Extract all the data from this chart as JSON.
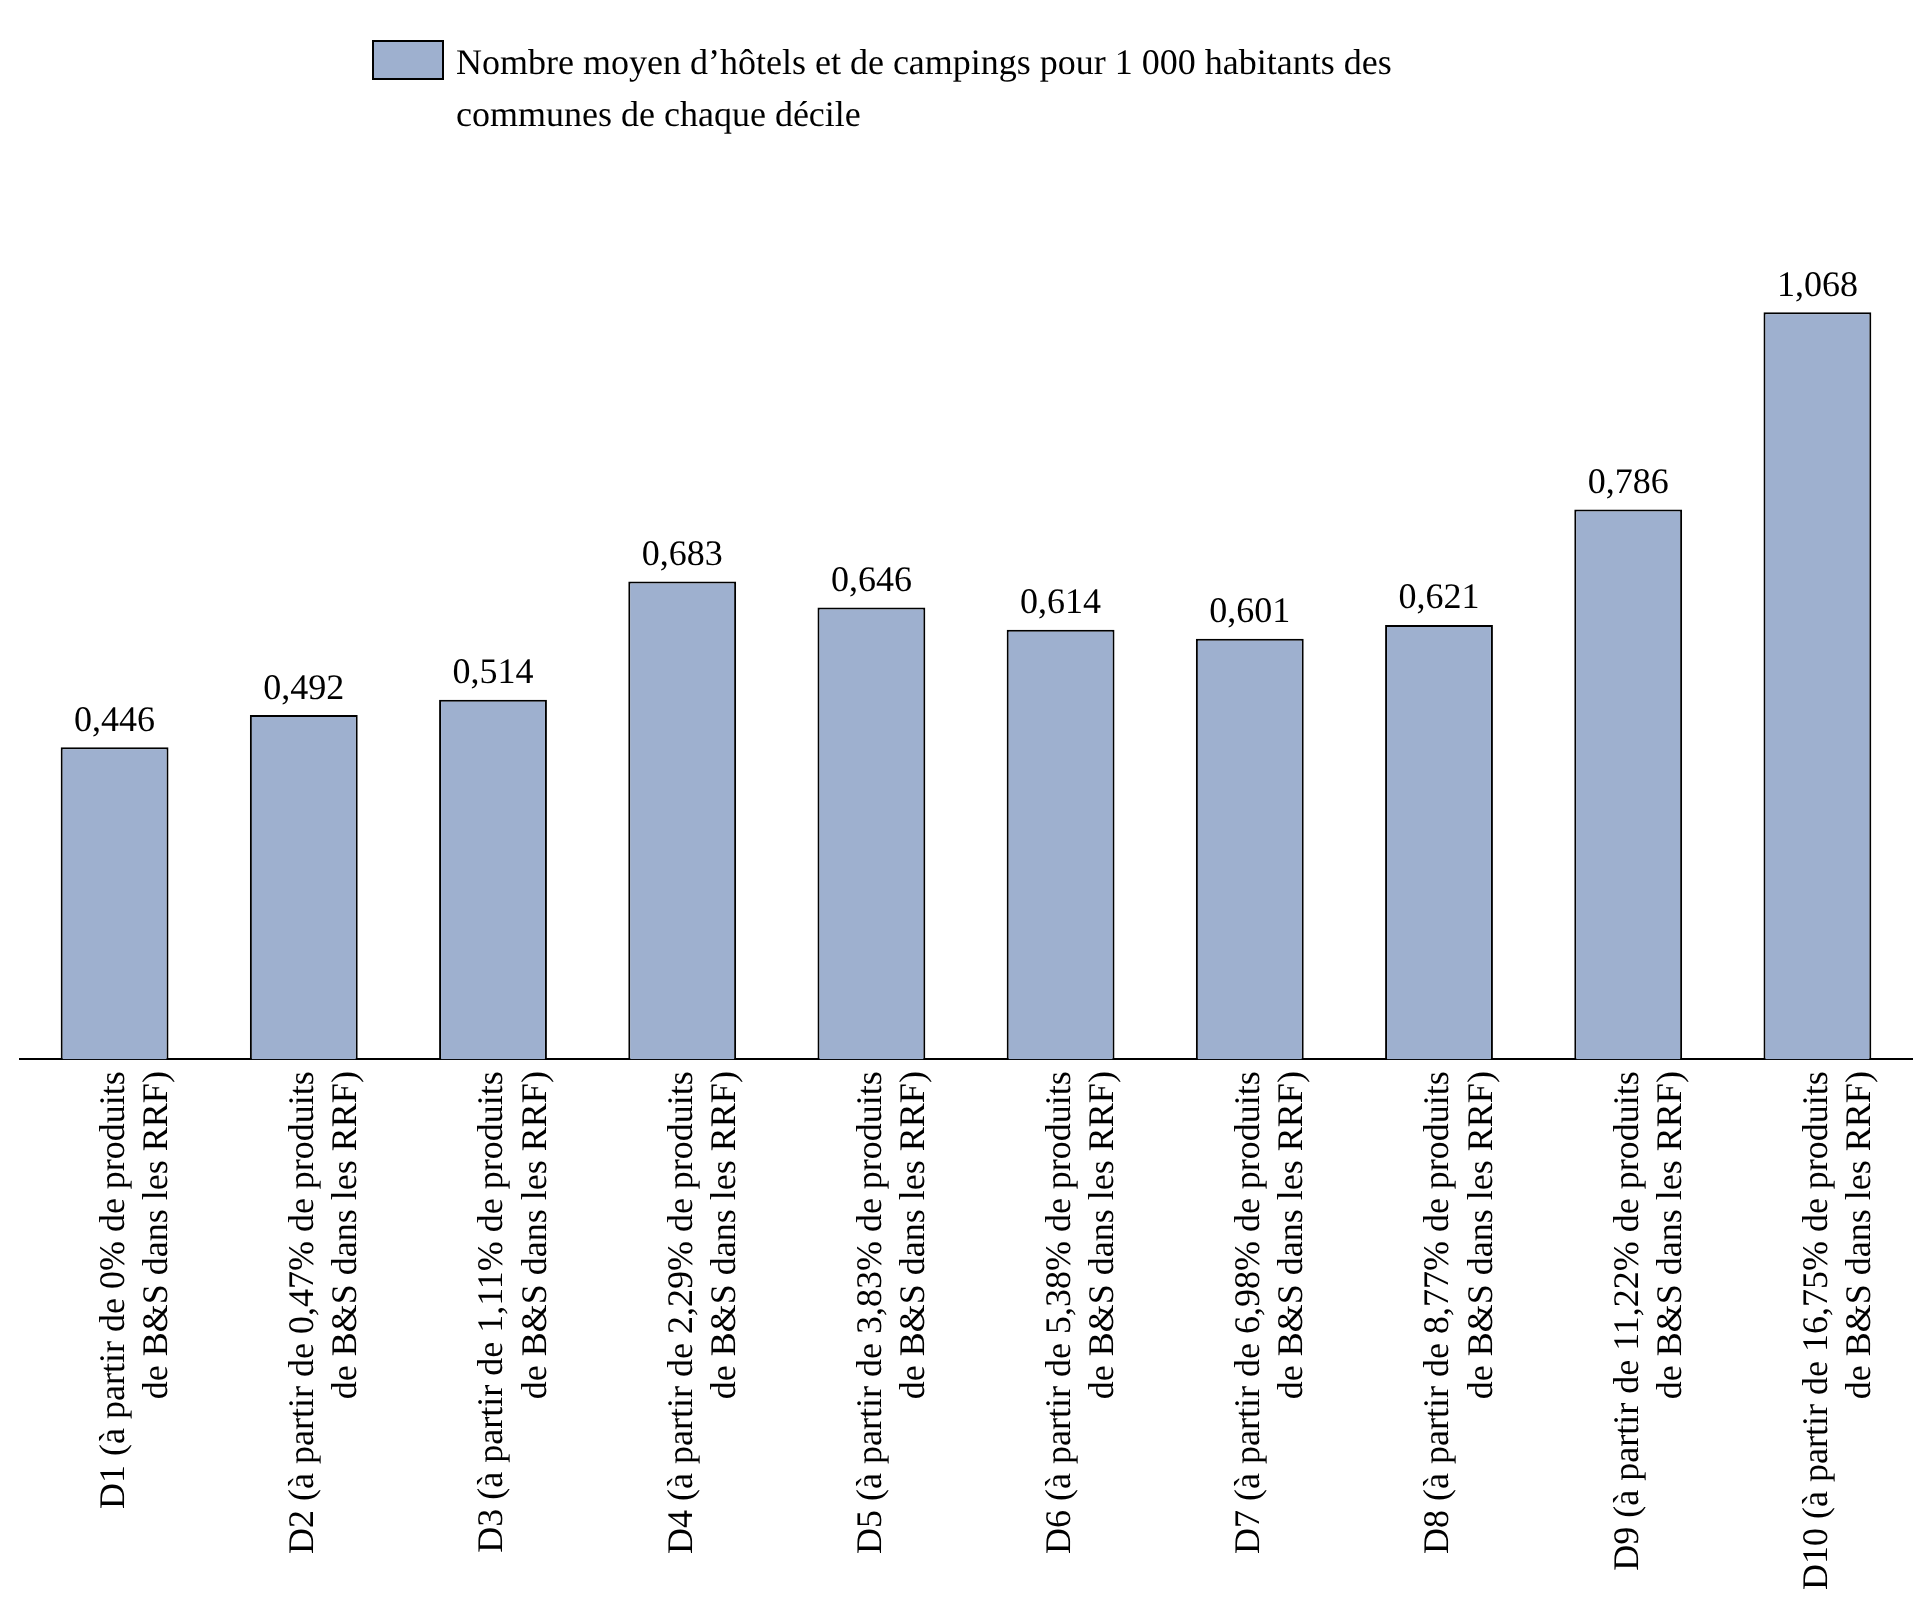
{
  "chart_data": {
    "type": "bar",
    "categories": [
      "D1 (à partir de 0% de produits\nde B&S dans les RRF)",
      "D2 (à partir de 0,47% de produits\nde B&S dans les RRF)",
      "D3 (à partir de 1,11% de produits\nde B&S dans les RRF)",
      "D4 (à partir de 2,29% de produits\nde B&S dans les RRF)",
      "D5 (à partir de 3,83% de produits\nde B&S dans les RRF)",
      "D6 (à partir de 5,38% de produits\nde B&S dans les RRF)",
      "D7 (à partir de 6,98% de produits\nde B&S dans les RRF)",
      "D8 (à partir de 8,77% de produits\nde B&S dans les RRF)",
      "D9 (à partir de 11,22% de produits\nde B&S dans les RRF)",
      "D10 (à partir de 16,75% de produits\nde B&S dans les RRF)"
    ],
    "series": [
      {
        "name": "Nombre moyen d’hôtels et de campings pour 1 000 habitants des communes de chaque décile",
        "color": "#9eb0cf",
        "values": [
          0.446,
          0.492,
          0.514,
          0.683,
          0.646,
          0.614,
          0.601,
          0.621,
          0.786,
          1.068
        ],
        "value_labels": [
          "0,446",
          "0,492",
          "0,514",
          "0,683",
          "0,646",
          "0,614",
          "0,601",
          "0,621",
          "0,786",
          "1,068"
        ]
      }
    ],
    "legend": "top",
    "grid": false
  }
}
